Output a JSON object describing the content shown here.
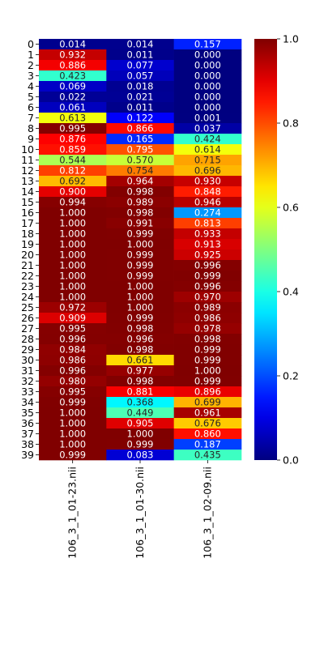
{
  "chart_data": {
    "type": "heatmap",
    "colormap": "jet",
    "rows": [
      "0",
      "1",
      "2",
      "3",
      "4",
      "5",
      "6",
      "7",
      "8",
      "9",
      "10",
      "11",
      "12",
      "13",
      "14",
      "15",
      "16",
      "17",
      "18",
      "19",
      "20",
      "21",
      "22",
      "23",
      "24",
      "25",
      "26",
      "27",
      "28",
      "29",
      "30",
      "31",
      "32",
      "33",
      "34",
      "35",
      "36",
      "37",
      "38",
      "39"
    ],
    "columns": [
      "106_3_1_01-23.nii",
      "106_3_1_01-30.nii",
      "106_3_1_02-09.nii"
    ],
    "values": [
      [
        0.014,
        0.014,
        0.157
      ],
      [
        0.932,
        0.011,
        0.0
      ],
      [
        0.886,
        0.077,
        0.0
      ],
      [
        0.423,
        0.057,
        0.0
      ],
      [
        0.069,
        0.018,
        0.0
      ],
      [
        0.022,
        0.021,
        0.0
      ],
      [
        0.061,
        0.011,
        0.0
      ],
      [
        0.613,
        0.122,
        0.001
      ],
      [
        0.995,
        0.866,
        0.037
      ],
      [
        0.876,
        0.165,
        0.424
      ],
      [
        0.859,
        0.795,
        0.614
      ],
      [
        0.544,
        0.57,
        0.715
      ],
      [
        0.812,
        0.754,
        0.696
      ],
      [
        0.692,
        0.964,
        0.93
      ],
      [
        0.9,
        0.998,
        0.848
      ],
      [
        0.994,
        0.989,
        0.946
      ],
      [
        1.0,
        0.998,
        0.274
      ],
      [
        1.0,
        0.991,
        0.813
      ],
      [
        1.0,
        0.999,
        0.933
      ],
      [
        1.0,
        1.0,
        0.913
      ],
      [
        1.0,
        0.999,
        0.925
      ],
      [
        1.0,
        0.999,
        0.996
      ],
      [
        1.0,
        0.999,
        0.999
      ],
      [
        1.0,
        1.0,
        0.996
      ],
      [
        1.0,
        1.0,
        0.97
      ],
      [
        0.972,
        1.0,
        0.989
      ],
      [
        0.909,
        0.999,
        0.986
      ],
      [
        0.995,
        0.998,
        0.978
      ],
      [
        0.996,
        0.996,
        0.998
      ],
      [
        0.984,
        0.998,
        0.999
      ],
      [
        0.986,
        0.661,
        0.999
      ],
      [
        0.996,
        0.977,
        1.0
      ],
      [
        0.98,
        0.998,
        0.999
      ],
      [
        0.995,
        0.881,
        0.896
      ],
      [
        0.999,
        0.368,
        0.699
      ],
      [
        1.0,
        0.449,
        0.961
      ],
      [
        1.0,
        0.905,
        0.676
      ],
      [
        1.0,
        1.0,
        0.86
      ],
      [
        1.0,
        0.999,
        0.187
      ],
      [
        0.999,
        0.083,
        0.435
      ]
    ],
    "vmin": 0,
    "vmax": 1,
    "colorbar_ticks": [
      "0.0",
      "0.2",
      "0.4",
      "0.6",
      "0.8",
      "1.0"
    ],
    "value_format": "3 decimals"
  }
}
